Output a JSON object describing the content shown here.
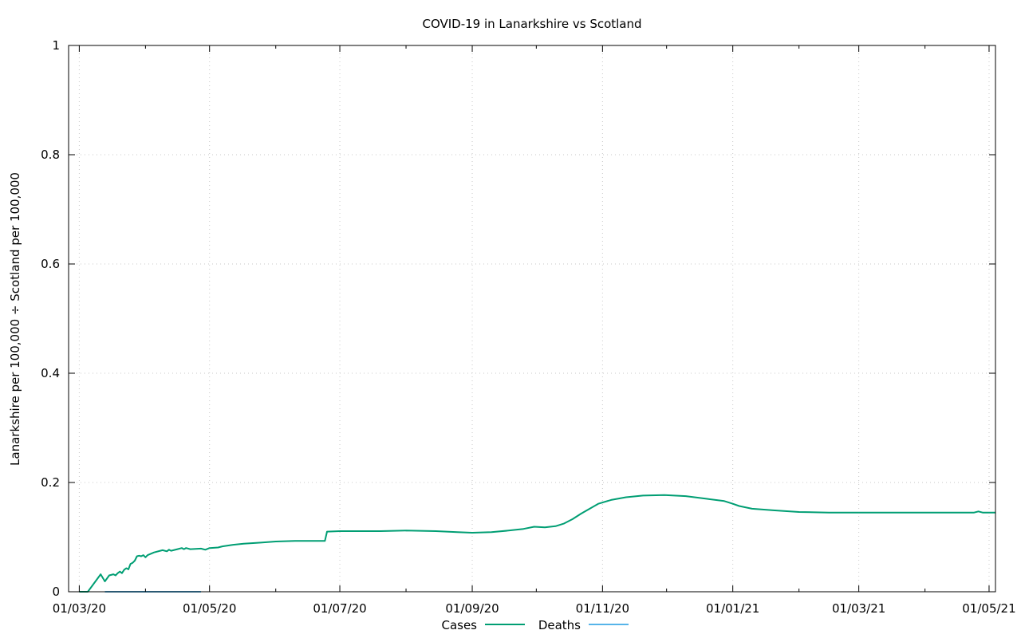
{
  "chart_data": {
    "type": "line",
    "title": "COVID-19 in Lanarkshire vs Scotland",
    "xlabel": "",
    "ylabel": "Lanarkshire per 100,000 ÷ Scotland per 100,000",
    "xlim": [
      "2020-02-25",
      "2021-05-04"
    ],
    "ylim": [
      0,
      1
    ],
    "x_ticks": [
      {
        "date": "2020-03-01",
        "label": "01/03/20"
      },
      {
        "date": "2020-05-01",
        "label": "01/05/20"
      },
      {
        "date": "2020-07-01",
        "label": "01/07/20"
      },
      {
        "date": "2020-09-01",
        "label": "01/09/20"
      },
      {
        "date": "2020-11-01",
        "label": "01/11/20"
      },
      {
        "date": "2021-01-01",
        "label": "01/01/21"
      },
      {
        "date": "2021-03-01",
        "label": "01/03/21"
      },
      {
        "date": "2021-05-01",
        "label": "01/05/21"
      }
    ],
    "y_ticks": [
      {
        "value": 0,
        "label": "0"
      },
      {
        "value": 0.2,
        "label": "0.2"
      },
      {
        "value": 0.4,
        "label": "0.4"
      },
      {
        "value": 0.6,
        "label": "0.6"
      },
      {
        "value": 0.8,
        "label": "0.8"
      },
      {
        "value": 1,
        "label": "1"
      }
    ],
    "grid": true,
    "legend_position": "bottom-center",
    "series": [
      {
        "name": "Cases",
        "color": "#009e73",
        "points": [
          [
            "2020-03-01",
            0
          ],
          [
            "2020-03-05",
            0
          ],
          [
            "2020-03-11",
            0.032
          ],
          [
            "2020-03-13",
            0.019
          ],
          [
            "2020-03-15",
            0.03
          ],
          [
            "2020-03-17",
            0.032
          ],
          [
            "2020-03-18",
            0.03
          ],
          [
            "2020-03-19",
            0.034
          ],
          [
            "2020-03-20",
            0.037
          ],
          [
            "2020-03-21",
            0.034
          ],
          [
            "2020-03-22",
            0.04
          ],
          [
            "2020-03-23",
            0.043
          ],
          [
            "2020-03-24",
            0.041
          ],
          [
            "2020-03-25",
            0.051
          ],
          [
            "2020-03-26",
            0.053
          ],
          [
            "2020-03-27",
            0.057
          ],
          [
            "2020-03-28",
            0.065
          ],
          [
            "2020-03-29",
            0.066
          ],
          [
            "2020-03-30",
            0.065
          ],
          [
            "2020-03-31",
            0.067
          ],
          [
            "2020-04-01",
            0.063
          ],
          [
            "2020-04-02",
            0.067
          ],
          [
            "2020-04-05",
            0.072
          ],
          [
            "2020-04-09",
            0.076
          ],
          [
            "2020-04-11",
            0.074
          ],
          [
            "2020-04-12",
            0.077
          ],
          [
            "2020-04-13",
            0.075
          ],
          [
            "2020-04-16",
            0.078
          ],
          [
            "2020-04-18",
            0.08
          ],
          [
            "2020-04-19",
            0.078
          ],
          [
            "2020-04-20",
            0.08
          ],
          [
            "2020-04-22",
            0.078
          ],
          [
            "2020-04-27",
            0.079
          ],
          [
            "2020-04-29",
            0.077
          ],
          [
            "2020-05-01",
            0.08
          ],
          [
            "2020-05-05",
            0.081
          ],
          [
            "2020-05-07",
            0.083
          ],
          [
            "2020-05-12",
            0.086
          ],
          [
            "2020-05-17",
            0.088
          ],
          [
            "2020-05-25",
            0.09
          ],
          [
            "2020-06-01",
            0.092
          ],
          [
            "2020-06-10",
            0.093
          ],
          [
            "2020-06-20",
            0.093
          ],
          [
            "2020-06-24",
            0.093
          ],
          [
            "2020-06-25",
            0.11
          ],
          [
            "2020-07-01",
            0.111
          ],
          [
            "2020-07-10",
            0.111
          ],
          [
            "2020-07-20",
            0.111
          ],
          [
            "2020-08-01",
            0.112
          ],
          [
            "2020-08-15",
            0.111
          ],
          [
            "2020-08-25",
            0.109
          ],
          [
            "2020-09-01",
            0.108
          ],
          [
            "2020-09-10",
            0.109
          ],
          [
            "2020-09-18",
            0.112
          ],
          [
            "2020-09-25",
            0.115
          ],
          [
            "2020-09-30",
            0.119
          ],
          [
            "2020-10-05",
            0.118
          ],
          [
            "2020-10-10",
            0.12
          ],
          [
            "2020-10-14",
            0.125
          ],
          [
            "2020-10-18",
            0.133
          ],
          [
            "2020-10-22",
            0.143
          ],
          [
            "2020-10-26",
            0.152
          ],
          [
            "2020-10-30",
            0.161
          ],
          [
            "2020-11-05",
            0.168
          ],
          [
            "2020-11-12",
            0.173
          ],
          [
            "2020-11-20",
            0.176
          ],
          [
            "2020-11-30",
            0.177
          ],
          [
            "2020-12-10",
            0.175
          ],
          [
            "2020-12-20",
            0.17
          ],
          [
            "2020-12-28",
            0.166
          ],
          [
            "2021-01-01",
            0.161
          ],
          [
            "2021-01-04",
            0.157
          ],
          [
            "2021-01-10",
            0.152
          ],
          [
            "2021-01-20",
            0.149
          ],
          [
            "2021-02-01",
            0.146
          ],
          [
            "2021-02-15",
            0.145
          ],
          [
            "2021-03-01",
            0.145
          ],
          [
            "2021-03-20",
            0.145
          ],
          [
            "2021-04-10",
            0.145
          ],
          [
            "2021-04-24",
            0.145
          ],
          [
            "2021-04-26",
            0.147
          ],
          [
            "2021-04-28",
            0.145
          ],
          [
            "2021-05-04",
            0.145
          ]
        ]
      },
      {
        "name": "Deaths",
        "color": "#56b4e9",
        "points": [
          [
            "2020-03-13",
            0
          ],
          [
            "2020-04-27",
            0
          ]
        ]
      }
    ]
  }
}
